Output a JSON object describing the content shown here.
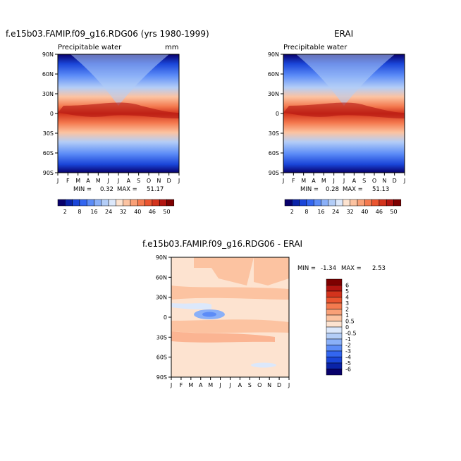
{
  "chart_data": [
    {
      "type": "heatmap",
      "title": "f.e15b03.FAMIP.f09_g16.RDG06 (yrs 1980-1999)",
      "subtitle": "Precipitable water",
      "units": "mm",
      "x_categories": [
        "J",
        "F",
        "M",
        "A",
        "M",
        "J",
        "J",
        "A",
        "S",
        "O",
        "N",
        "D",
        "J"
      ],
      "y_ticks": [
        "90N",
        "60N",
        "30N",
        "0",
        "30S",
        "60S",
        "90S"
      ],
      "y_range": [
        -90,
        90
      ],
      "min_label": "MIN =",
      "min": "0.32",
      "max_label": "MAX =",
      "max": "51.17",
      "colorbar_levels": [
        "2",
        "8",
        "16",
        "24",
        "32",
        "40",
        "46",
        "50"
      ],
      "colorscale": [
        "#08006b",
        "#0a23a8",
        "#1a45d8",
        "#3366f0",
        "#5c8cf7",
        "#8ab0f8",
        "#b3cdf7",
        "#dce8fb",
        "#fde3d0",
        "#fcc3a1",
        "#f9a077",
        "#f47a4f",
        "#ea5530",
        "#d3331c",
        "#b21410",
        "#7e0000"
      ]
    },
    {
      "type": "heatmap",
      "title": "ERAI",
      "subtitle": "Precipitable water",
      "x_categories": [
        "J",
        "F",
        "M",
        "A",
        "M",
        "J",
        "J",
        "A",
        "S",
        "O",
        "N",
        "D",
        "J"
      ],
      "y_ticks": [
        "90N",
        "60N",
        "30N",
        "0",
        "30S",
        "60S",
        "90S"
      ],
      "y_range": [
        -90,
        90
      ],
      "min_label": "MIN =",
      "min": "0.28",
      "max_label": "MAX =",
      "max": "51.13",
      "colorbar_levels": [
        "2",
        "8",
        "16",
        "24",
        "32",
        "40",
        "46",
        "50"
      ]
    },
    {
      "type": "heatmap",
      "title": "f.e15b03.FAMIP.f09_g16.RDG06 - ERAI",
      "x_categories": [
        "J",
        "F",
        "M",
        "A",
        "M",
        "J",
        "J",
        "A",
        "S",
        "O",
        "N",
        "D",
        "J"
      ],
      "y_ticks": [
        "90N",
        "60N",
        "30N",
        "0",
        "30S",
        "60S",
        "90S"
      ],
      "y_range": [
        -90,
        90
      ],
      "min_label": "MIN =",
      "min": "-1.34",
      "max_label": "MAX =",
      "max": "2.53",
      "colorbar_levels": [
        "6",
        "5",
        "4",
        "3",
        "2",
        "1",
        "0.5",
        "0",
        "-0.5",
        "-1",
        "-2",
        "-3",
        "-4",
        "-5",
        "-6"
      ],
      "colorscale": [
        "#7e0000",
        "#b21410",
        "#d3331c",
        "#ea5530",
        "#f47a4f",
        "#f9a077",
        "#fcc3a1",
        "#fde3d0",
        "#dce8fb",
        "#b3cdf7",
        "#8ab0f8",
        "#5c8cf7",
        "#3366f0",
        "#1a45d8",
        "#0a23a8",
        "#08006b"
      ]
    }
  ]
}
